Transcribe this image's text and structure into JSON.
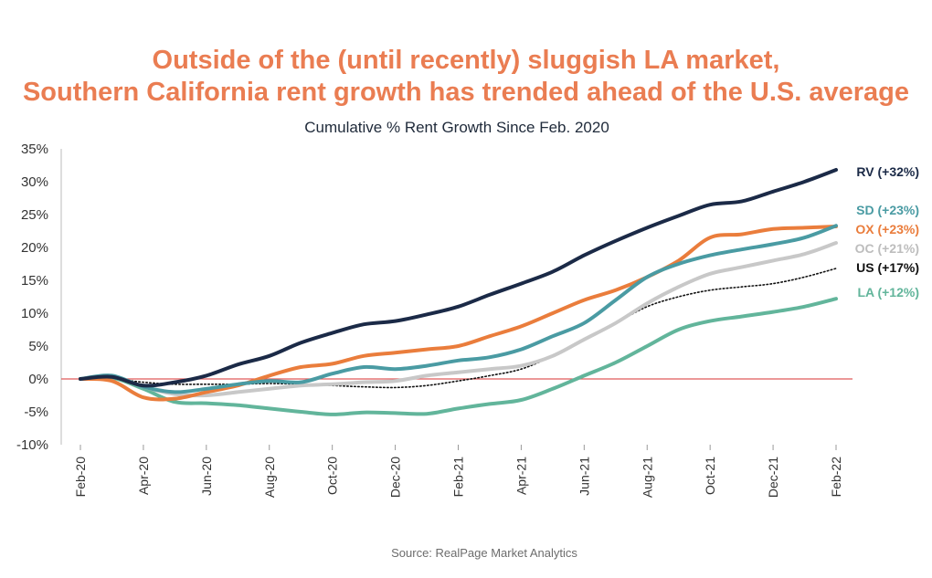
{
  "title_line1": "Outside of the (until recently) sluggish LA market,",
  "title_line2": "Southern California rent growth has trended ahead of the U.S. average",
  "subtitle": "Cumulative % Rent Growth Since Feb. 2020",
  "source": "Source: RealPage Market Analytics",
  "chart_data": {
    "type": "line",
    "y_tick_labels": [
      "35%",
      "30%",
      "25%",
      "20%",
      "15%",
      "10%",
      "5%",
      "0%",
      "-5%",
      "-10%"
    ],
    "x_tick_labels": [
      "Feb-20",
      "Apr-20",
      "Jun-20",
      "Aug-20",
      "Oct-20",
      "Dec-20",
      "Feb-21",
      "Apr-21",
      "Jun-21",
      "Aug-21",
      "Oct-21",
      "Dec-21",
      "Feb-22"
    ],
    "ylim": [
      -10,
      35
    ],
    "x": [
      "2020-02",
      "2020-03",
      "2020-04",
      "2020-05",
      "2020-06",
      "2020-07",
      "2020-08",
      "2020-09",
      "2020-10",
      "2020-11",
      "2020-12",
      "2021-01",
      "2021-02",
      "2021-03",
      "2021-04",
      "2021-05",
      "2021-06",
      "2021-07",
      "2021-08",
      "2021-09",
      "2021-10",
      "2021-11",
      "2021-12",
      "2022-01",
      "2022-02"
    ],
    "zero_line_color": "#e05a5a",
    "series": [
      {
        "name": "RV (+32%)",
        "color": "#1b2a47",
        "dash": false,
        "values": [
          0,
          0.3,
          -1.0,
          -0.5,
          0.5,
          2.2,
          3.5,
          5.5,
          7.0,
          8.3,
          8.8,
          9.8,
          11.0,
          12.8,
          14.5,
          16.3,
          18.8,
          21.0,
          23.0,
          24.8,
          26.5,
          27.0,
          28.5,
          30.0,
          31.8
        ]
      },
      {
        "name": "SD (+23%)",
        "color": "#4a9ba3",
        "dash": false,
        "values": [
          0,
          0.5,
          -1.2,
          -2.0,
          -1.5,
          -0.8,
          -0.3,
          -0.5,
          0.8,
          1.8,
          1.5,
          2.0,
          2.8,
          3.3,
          4.5,
          6.5,
          8.5,
          12.0,
          15.5,
          17.5,
          18.8,
          19.7,
          20.5,
          21.5,
          23.3
        ]
      },
      {
        "name": "OX (+23%)",
        "color": "#ea7d3c",
        "dash": false,
        "values": [
          0,
          -0.3,
          -2.8,
          -3.0,
          -2.0,
          -1.0,
          0.5,
          1.8,
          2.3,
          3.5,
          4.0,
          4.5,
          5.0,
          6.5,
          8.0,
          10.0,
          12.0,
          13.5,
          15.5,
          18.0,
          21.5,
          22.0,
          22.8,
          23.0,
          23.2
        ]
      },
      {
        "name": "OC (+21%)",
        "color": "#c8c8c8",
        "dash": false,
        "values": [
          0,
          0.4,
          -1.2,
          -2.3,
          -2.5,
          -2.0,
          -1.5,
          -1.0,
          -0.8,
          -0.5,
          -0.3,
          0.5,
          1.0,
          1.5,
          2.0,
          3.5,
          6.0,
          8.5,
          11.5,
          14.0,
          16.0,
          17.0,
          18.0,
          19.0,
          20.7
        ]
      },
      {
        "name": "US (+17%)",
        "color": "#111111",
        "dash": true,
        "values": [
          0,
          0.0,
          -0.5,
          -0.8,
          -0.8,
          -0.8,
          -0.7,
          -0.8,
          -1.0,
          -1.2,
          -1.3,
          -1.0,
          -0.3,
          0.5,
          1.5,
          3.5,
          6.0,
          8.5,
          11.0,
          12.5,
          13.5,
          14.0,
          14.5,
          15.5,
          16.8
        ]
      },
      {
        "name": "LA (+12%)",
        "color": "#62b59b",
        "dash": false,
        "values": [
          0,
          0.2,
          -1.5,
          -3.5,
          -3.7,
          -4.0,
          -4.5,
          -5.0,
          -5.4,
          -5.1,
          -5.2,
          -5.3,
          -4.5,
          -3.8,
          -3.2,
          -1.5,
          0.5,
          2.5,
          5.0,
          7.5,
          8.8,
          9.5,
          10.2,
          11.0,
          12.2
        ]
      }
    ]
  }
}
